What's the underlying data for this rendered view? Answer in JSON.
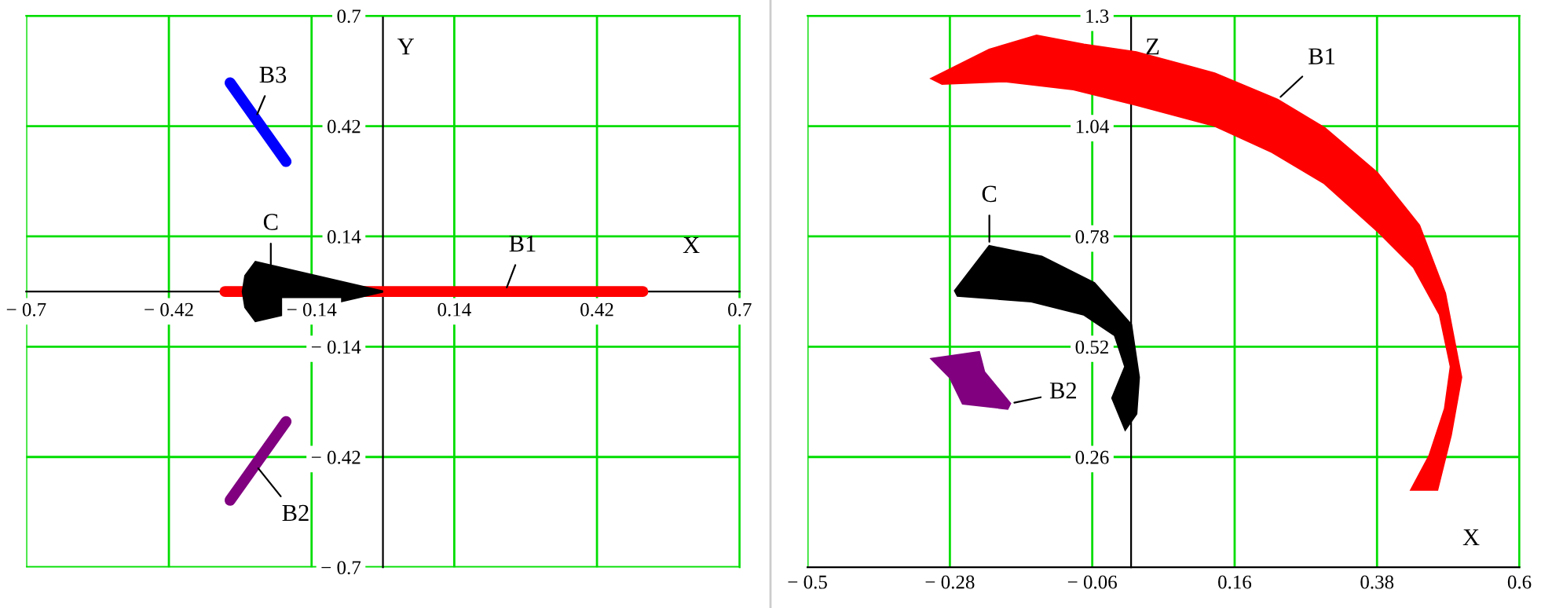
{
  "chart_data": [
    {
      "type": "area",
      "xlabel": "X",
      "ylabel": "Y",
      "xlim": [
        -0.7,
        0.7
      ],
      "ylim": [
        -0.7,
        0.7
      ],
      "xticks": [
        {
          "value": -0.7,
          "label": "− 0.7"
        },
        {
          "value": -0.42,
          "label": "− 0.42"
        },
        {
          "value": -0.14,
          "label": "− 0.14"
        },
        0.14,
        0.42,
        0.7
      ],
      "yticks": [
        {
          "value": -0.7,
          "label": "− 0.7"
        },
        {
          "value": -0.42,
          "label": "− 0.42"
        },
        {
          "value": -0.14,
          "label": "− 0.14"
        },
        0.14,
        0.42,
        0.7
      ],
      "grid": true,
      "series": [
        {
          "type": "line",
          "color": "#ff0000",
          "x": [
            -0.31,
            0.51
          ],
          "values": [
            0.0,
            0.0
          ]
        },
        {
          "type": "line",
          "color": "#0000ff",
          "x": [
            -0.3,
            -0.19
          ],
          "values": [
            0.53,
            0.33
          ]
        },
        {
          "type": "line",
          "color": "#800080",
          "x": [
            -0.3,
            -0.19
          ],
          "values": [
            -0.53,
            -0.33
          ]
        },
        {
          "color": "#000000",
          "x": [
            -0.25,
            -0.27,
            -0.275,
            -0.27,
            -0.25,
            0.0
          ],
          "values": [
            0.075,
            0.04,
            0.0,
            -0.04,
            -0.075,
            0.0
          ]
        }
      ],
      "annotations": [
        {
          "text": "B3",
          "x": -0.25,
          "y": 0.44
        },
        {
          "text": "C",
          "x": -0.22,
          "y": 0.055
        },
        {
          "text": "B1",
          "x": 0.24,
          "y": 0.0
        },
        {
          "text": "B2",
          "x": -0.25,
          "y": -0.44
        }
      ]
    },
    {
      "type": "area",
      "xlabel": "X",
      "ylabel": "Z",
      "xlim": [
        -0.5,
        0.6
      ],
      "ylim": [
        0.0,
        1.3
      ],
      "xticks": [
        {
          "value": -0.5,
          "label": "− 0.5"
        },
        {
          "value": -0.28,
          "label": "− 0.28"
        },
        {
          "value": -0.06,
          "label": "− 0.06"
        },
        0.16,
        0.38,
        0.6
      ],
      "yticks": [
        0.26,
        0.52,
        0.78,
        1.04,
        1.3
      ],
      "grid": true,
      "series": [
        {
          "color": "#ff0000",
          "x": [
            -0.308,
            -0.219,
            -0.146,
            -0.073,
            0.008,
            0.129,
            0.226,
            0.299,
            0.38,
            0.445,
            0.485,
            0.51,
            0.494,
            0.473,
            0.433,
            0.461,
            0.485,
            0.494,
            0.477,
            0.437,
            0.38,
            0.299,
            0.218,
            0.129,
            0.008,
            -0.089,
            -0.195,
            -0.292
          ],
          "values": [
            1.152,
            1.22,
            1.253,
            1.232,
            1.214,
            1.164,
            1.102,
            1.035,
            0.93,
            0.806,
            0.646,
            0.448,
            0.312,
            0.183,
            0.183,
            0.263,
            0.374,
            0.473,
            0.596,
            0.707,
            0.794,
            0.905,
            0.979,
            1.041,
            1.09,
            1.127,
            1.146,
            1.14
          ]
        },
        {
          "color": "#000000",
          "x": [
            -0.272,
            -0.219,
            -0.138,
            -0.057,
            0.0,
            0.012,
            0.008,
            -0.009,
            -0.029,
            -0.009,
            -0.025,
            -0.073,
            -0.154,
            -0.268
          ],
          "values": [
            0.652,
            0.757,
            0.732,
            0.67,
            0.572,
            0.448,
            0.362,
            0.325,
            0.399,
            0.473,
            0.547,
            0.596,
            0.627,
            0.64
          ]
        },
        {
          "color": "#800080",
          "x": [
            -0.308,
            -0.235,
            -0.227,
            -0.187,
            -0.191,
            -0.26,
            -0.28
          ],
          "values": [
            0.491,
            0.507,
            0.46,
            0.386,
            0.374,
            0.386,
            0.448
          ]
        }
      ],
      "annotations": [
        {
          "text": "B1",
          "x": 0.226,
          "y": 1.102
        },
        {
          "text": "C",
          "x": -0.219,
          "y": 0.757
        },
        {
          "text": "B2",
          "x": -0.187,
          "y": 0.386
        }
      ]
    }
  ]
}
